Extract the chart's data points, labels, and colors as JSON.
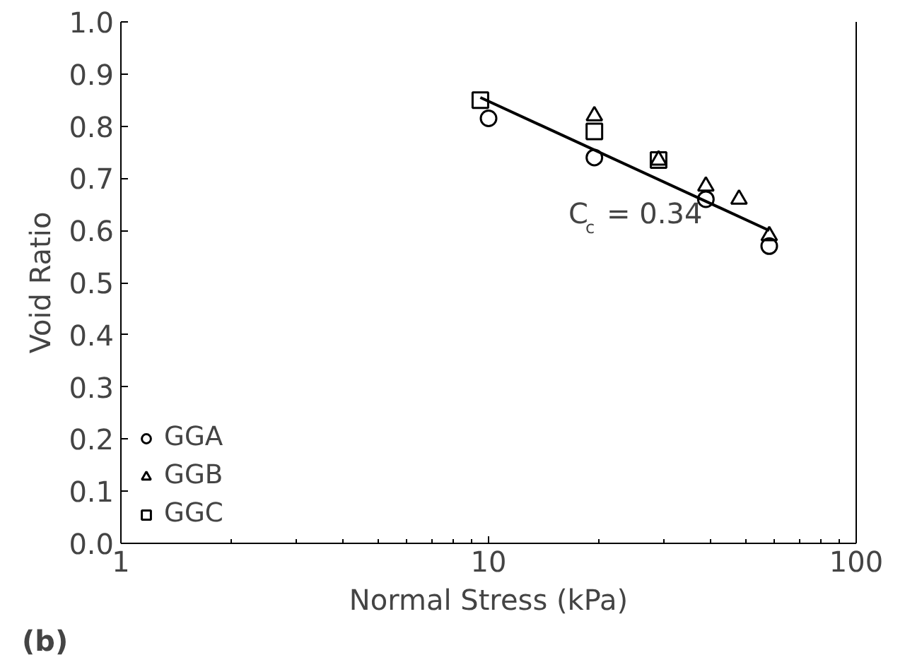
{
  "chart_data": {
    "type": "scatter",
    "xlabel": "Normal Stress (kPa)",
    "ylabel": "Void Ratio",
    "log": "x",
    "xlim": [
      1,
      100
    ],
    "xticks": [
      1,
      10,
      100
    ],
    "ylim": [
      0,
      1
    ],
    "yticks": [
      {
        "value": 0,
        "label": "0.0"
      },
      {
        "value": 0.1,
        "label": "0.1"
      },
      {
        "value": 0.2,
        "label": "0.2"
      },
      {
        "value": 0.3,
        "label": "0.3"
      },
      {
        "value": 0.4,
        "label": "0.4"
      },
      {
        "value": 0.5,
        "label": "0.5"
      },
      {
        "value": 0.6,
        "label": "0.6"
      },
      {
        "value": 0.7,
        "label": "0.7"
      },
      {
        "value": 0.8,
        "label": "0.8"
      },
      {
        "value": 0.9,
        "label": "0.9"
      },
      {
        "value": 1,
        "label": "1.0"
      }
    ],
    "grid": false,
    "legend": "bottom left",
    "series": [
      {
        "name": "GGA",
        "color": "#000000",
        "marker": "circle",
        "x": [
          10,
          19.4,
          39,
          58
        ],
        "values": [
          0.815,
          0.74,
          0.66,
          0.57
        ]
      },
      {
        "name": "GGB",
        "color": "#000000",
        "marker": "triangle",
        "x": [
          19.4,
          29,
          39,
          48,
          58
        ],
        "values": [
          0.82,
          0.735,
          0.685,
          0.66,
          0.59
        ]
      },
      {
        "name": "GGC",
        "color": "#000000",
        "marker": "square",
        "x": [
          9.5,
          19.4,
          29
        ],
        "values": [
          0.85,
          0.79,
          0.735
        ]
      },
      {
        "type": "line",
        "color": "#000000",
        "marker": "none",
        "line_style": "solid",
        "x": [
          9.5,
          58
        ],
        "values": [
          0.855,
          0.6
        ]
      }
    ],
    "annotations": [
      "C$_{c}$ = 0.34",
      "(b)"
    ]
  }
}
